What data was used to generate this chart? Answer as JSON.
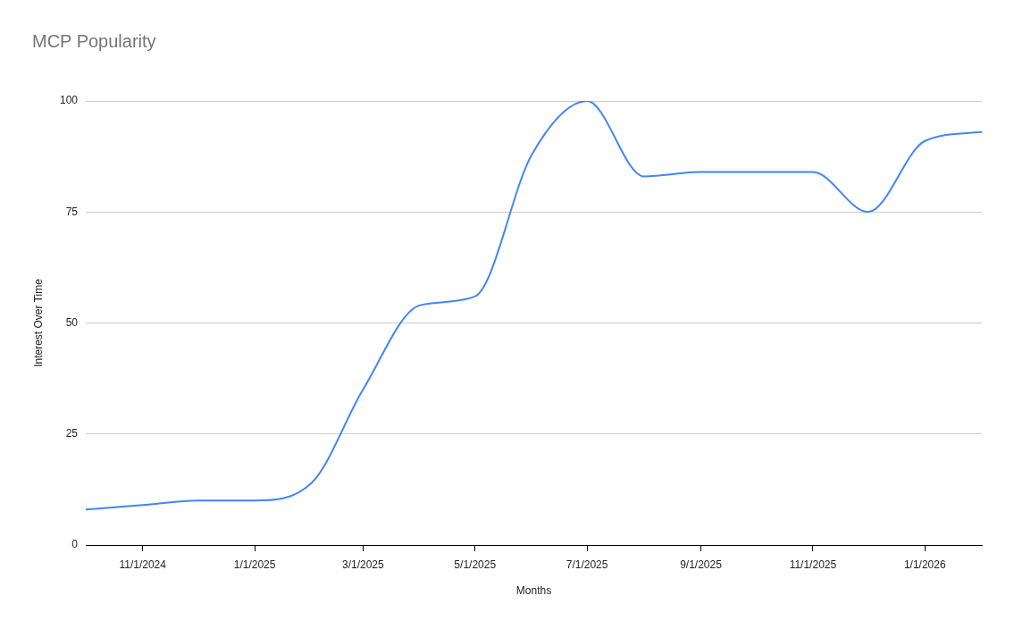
{
  "chart_data": {
    "type": "line",
    "title": "MCP Popularity",
    "xlabel": "Months",
    "ylabel": "Interest Over Time",
    "x": [
      "2024-10-01",
      "2024-11-01",
      "2024-12-01",
      "2025-01-01",
      "2025-02-01",
      "2025-03-01",
      "2025-04-01",
      "2025-05-01",
      "2025-06-01",
      "2025-07-01",
      "2025-08-01",
      "2025-09-01",
      "2025-10-01",
      "2025-11-01",
      "2025-12-01",
      "2026-01-01",
      "2026-02-01"
    ],
    "series": [
      {
        "color": "#4285f4",
        "values": [
          8,
          9,
          10,
          10,
          14,
          35,
          54,
          56,
          88,
          100,
          83,
          84,
          84,
          84,
          75,
          91,
          93
        ]
      }
    ],
    "xlim": [
      "2024-10-01",
      "2026-02-01"
    ],
    "xticks": [
      {
        "value": "2024-11-01",
        "label": "11/1/2024"
      },
      {
        "value": "2025-01-01",
        "label": "1/1/2025"
      },
      {
        "value": "2025-03-01",
        "label": "3/1/2025"
      },
      {
        "value": "2025-05-01",
        "label": "5/1/2025"
      },
      {
        "value": "2025-07-01",
        "label": "7/1/2025"
      },
      {
        "value": "2025-09-01",
        "label": "9/1/2025"
      },
      {
        "value": "2025-11-01",
        "label": "11/1/2025"
      },
      {
        "value": "2026-01-01",
        "label": "1/1/2026"
      }
    ],
    "ylim": [
      0,
      100
    ],
    "yticks": [
      0,
      25,
      50,
      75,
      100
    ],
    "grid": "y"
  }
}
